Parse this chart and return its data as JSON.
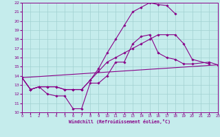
{
  "background_color": "#c5ecec",
  "grid_color": "#a0d0d0",
  "line_color": "#880088",
  "xlabel": "Windchill (Refroidissement éolien,°C)",
  "xlim": [
    0,
    23
  ],
  "ylim": [
    10,
    22
  ],
  "xticks": [
    0,
    1,
    2,
    3,
    4,
    5,
    6,
    7,
    8,
    9,
    10,
    11,
    12,
    13,
    14,
    15,
    16,
    17,
    18,
    19,
    20,
    21,
    22,
    23
  ],
  "yticks": [
    10,
    11,
    12,
    13,
    14,
    15,
    16,
    17,
    18,
    19,
    20,
    21,
    22
  ],
  "line1_x": [
    0,
    1,
    2,
    3,
    4,
    5,
    6,
    7,
    8,
    9,
    10,
    11,
    12,
    13,
    14,
    15,
    16,
    17,
    18,
    19,
    20,
    22,
    23
  ],
  "line1_y": [
    13.8,
    12.5,
    12.8,
    12.0,
    11.8,
    11.8,
    10.4,
    10.4,
    13.2,
    13.2,
    14.0,
    15.5,
    15.5,
    17.5,
    18.3,
    18.5,
    16.5,
    16.0,
    15.8,
    15.3,
    15.3,
    15.5,
    15.2
  ],
  "line2_x": [
    0,
    1,
    2,
    3,
    4,
    5,
    6,
    7,
    8,
    9,
    10,
    11,
    12,
    13,
    14,
    15,
    16,
    17,
    18
  ],
  "line2_y": [
    13.8,
    12.5,
    12.8,
    12.8,
    12.8,
    12.5,
    12.5,
    12.5,
    13.5,
    14.8,
    16.5,
    18.0,
    19.5,
    21.0,
    21.5,
    22.0,
    21.8,
    21.7,
    20.8
  ],
  "line3_x": [
    0,
    23
  ],
  "line3_y": [
    13.8,
    15.2
  ],
  "line4_x": [
    0,
    1,
    2,
    3,
    4,
    5,
    6,
    7,
    8,
    9,
    10,
    11,
    12,
    13,
    14,
    15,
    16,
    17,
    18,
    19,
    20,
    22
  ],
  "line4_y": [
    13.8,
    12.5,
    12.8,
    12.8,
    12.8,
    12.5,
    12.5,
    12.5,
    13.5,
    14.5,
    15.5,
    16.0,
    16.5,
    17.0,
    17.5,
    18.0,
    18.5,
    18.5,
    18.5,
    17.5,
    15.8,
    15.3
  ]
}
